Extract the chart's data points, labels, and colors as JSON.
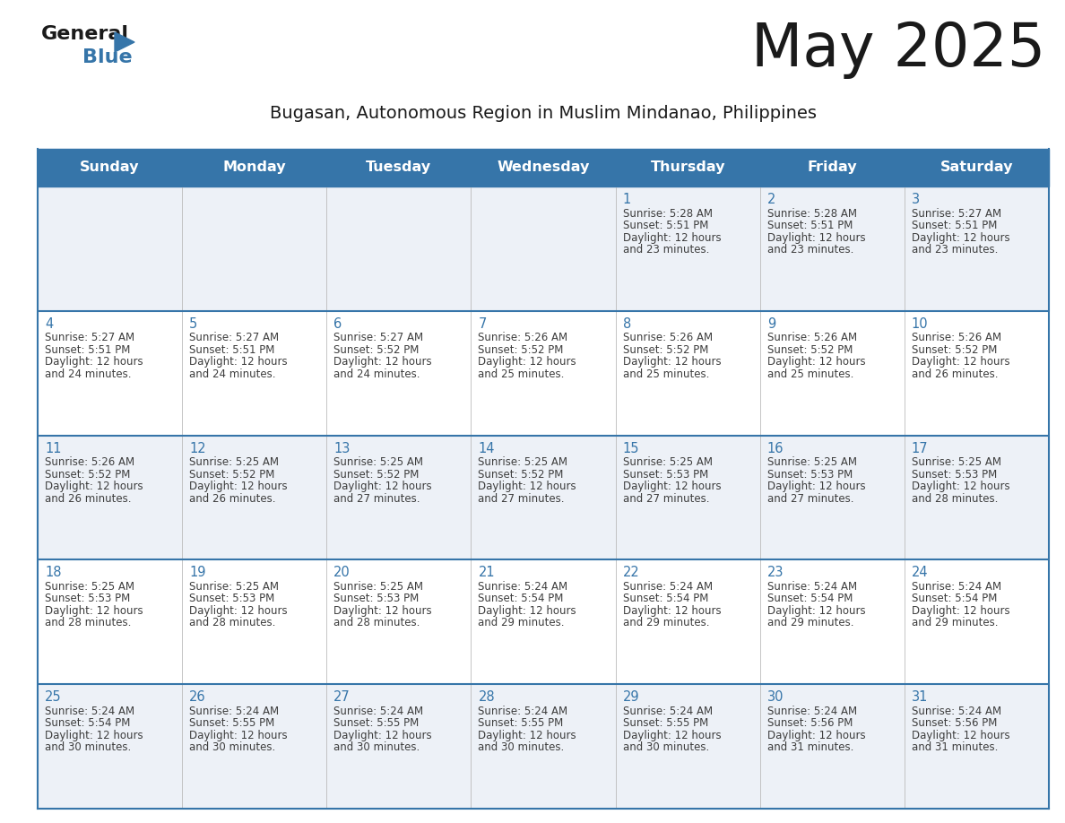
{
  "title": "May 2025",
  "subtitle": "Bugasan, Autonomous Region in Muslim Mindanao, Philippines",
  "header_bg_color": "#3675a9",
  "header_text_color": "#ffffff",
  "cell_bg_row0": "#edf1f7",
  "cell_bg_row1": "#ffffff",
  "cell_bg_row2": "#edf1f7",
  "cell_bg_row3": "#ffffff",
  "cell_bg_row4": "#edf1f7",
  "day_number_color": "#3675a9",
  "text_color": "#3d3d3d",
  "grid_line_color": "#3675a9",
  "thin_line_color": "#bbbbbb",
  "days_of_week": [
    "Sunday",
    "Monday",
    "Tuesday",
    "Wednesday",
    "Thursday",
    "Friday",
    "Saturday"
  ],
  "weeks": [
    [
      {
        "day": null,
        "sunrise": null,
        "sunset": null,
        "daylight": null
      },
      {
        "day": null,
        "sunrise": null,
        "sunset": null,
        "daylight": null
      },
      {
        "day": null,
        "sunrise": null,
        "sunset": null,
        "daylight": null
      },
      {
        "day": null,
        "sunrise": null,
        "sunset": null,
        "daylight": null
      },
      {
        "day": 1,
        "sunrise": "5:28 AM",
        "sunset": "5:51 PM",
        "daylight": "12 hours\nand 23 minutes."
      },
      {
        "day": 2,
        "sunrise": "5:28 AM",
        "sunset": "5:51 PM",
        "daylight": "12 hours\nand 23 minutes."
      },
      {
        "day": 3,
        "sunrise": "5:27 AM",
        "sunset": "5:51 PM",
        "daylight": "12 hours\nand 23 minutes."
      }
    ],
    [
      {
        "day": 4,
        "sunrise": "5:27 AM",
        "sunset": "5:51 PM",
        "daylight": "12 hours\nand 24 minutes."
      },
      {
        "day": 5,
        "sunrise": "5:27 AM",
        "sunset": "5:51 PM",
        "daylight": "12 hours\nand 24 minutes."
      },
      {
        "day": 6,
        "sunrise": "5:27 AM",
        "sunset": "5:52 PM",
        "daylight": "12 hours\nand 24 minutes."
      },
      {
        "day": 7,
        "sunrise": "5:26 AM",
        "sunset": "5:52 PM",
        "daylight": "12 hours\nand 25 minutes."
      },
      {
        "day": 8,
        "sunrise": "5:26 AM",
        "sunset": "5:52 PM",
        "daylight": "12 hours\nand 25 minutes."
      },
      {
        "day": 9,
        "sunrise": "5:26 AM",
        "sunset": "5:52 PM",
        "daylight": "12 hours\nand 25 minutes."
      },
      {
        "day": 10,
        "sunrise": "5:26 AM",
        "sunset": "5:52 PM",
        "daylight": "12 hours\nand 26 minutes."
      }
    ],
    [
      {
        "day": 11,
        "sunrise": "5:26 AM",
        "sunset": "5:52 PM",
        "daylight": "12 hours\nand 26 minutes."
      },
      {
        "day": 12,
        "sunrise": "5:25 AM",
        "sunset": "5:52 PM",
        "daylight": "12 hours\nand 26 minutes."
      },
      {
        "day": 13,
        "sunrise": "5:25 AM",
        "sunset": "5:52 PM",
        "daylight": "12 hours\nand 27 minutes."
      },
      {
        "day": 14,
        "sunrise": "5:25 AM",
        "sunset": "5:52 PM",
        "daylight": "12 hours\nand 27 minutes."
      },
      {
        "day": 15,
        "sunrise": "5:25 AM",
        "sunset": "5:53 PM",
        "daylight": "12 hours\nand 27 minutes."
      },
      {
        "day": 16,
        "sunrise": "5:25 AM",
        "sunset": "5:53 PM",
        "daylight": "12 hours\nand 27 minutes."
      },
      {
        "day": 17,
        "sunrise": "5:25 AM",
        "sunset": "5:53 PM",
        "daylight": "12 hours\nand 28 minutes."
      }
    ],
    [
      {
        "day": 18,
        "sunrise": "5:25 AM",
        "sunset": "5:53 PM",
        "daylight": "12 hours\nand 28 minutes."
      },
      {
        "day": 19,
        "sunrise": "5:25 AM",
        "sunset": "5:53 PM",
        "daylight": "12 hours\nand 28 minutes."
      },
      {
        "day": 20,
        "sunrise": "5:25 AM",
        "sunset": "5:53 PM",
        "daylight": "12 hours\nand 28 minutes."
      },
      {
        "day": 21,
        "sunrise": "5:24 AM",
        "sunset": "5:54 PM",
        "daylight": "12 hours\nand 29 minutes."
      },
      {
        "day": 22,
        "sunrise": "5:24 AM",
        "sunset": "5:54 PM",
        "daylight": "12 hours\nand 29 minutes."
      },
      {
        "day": 23,
        "sunrise": "5:24 AM",
        "sunset": "5:54 PM",
        "daylight": "12 hours\nand 29 minutes."
      },
      {
        "day": 24,
        "sunrise": "5:24 AM",
        "sunset": "5:54 PM",
        "daylight": "12 hours\nand 29 minutes."
      }
    ],
    [
      {
        "day": 25,
        "sunrise": "5:24 AM",
        "sunset": "5:54 PM",
        "daylight": "12 hours\nand 30 minutes."
      },
      {
        "day": 26,
        "sunrise": "5:24 AM",
        "sunset": "5:55 PM",
        "daylight": "12 hours\nand 30 minutes."
      },
      {
        "day": 27,
        "sunrise": "5:24 AM",
        "sunset": "5:55 PM",
        "daylight": "12 hours\nand 30 minutes."
      },
      {
        "day": 28,
        "sunrise": "5:24 AM",
        "sunset": "5:55 PM",
        "daylight": "12 hours\nand 30 minutes."
      },
      {
        "day": 29,
        "sunrise": "5:24 AM",
        "sunset": "5:55 PM",
        "daylight": "12 hours\nand 30 minutes."
      },
      {
        "day": 30,
        "sunrise": "5:24 AM",
        "sunset": "5:56 PM",
        "daylight": "12 hours\nand 31 minutes."
      },
      {
        "day": 31,
        "sunrise": "5:24 AM",
        "sunset": "5:56 PM",
        "daylight": "12 hours\nand 31 minutes."
      }
    ]
  ],
  "logo_general_color": "#1a1a1a",
  "logo_blue_color": "#3675a9",
  "logo_triangle_color": "#3675a9"
}
